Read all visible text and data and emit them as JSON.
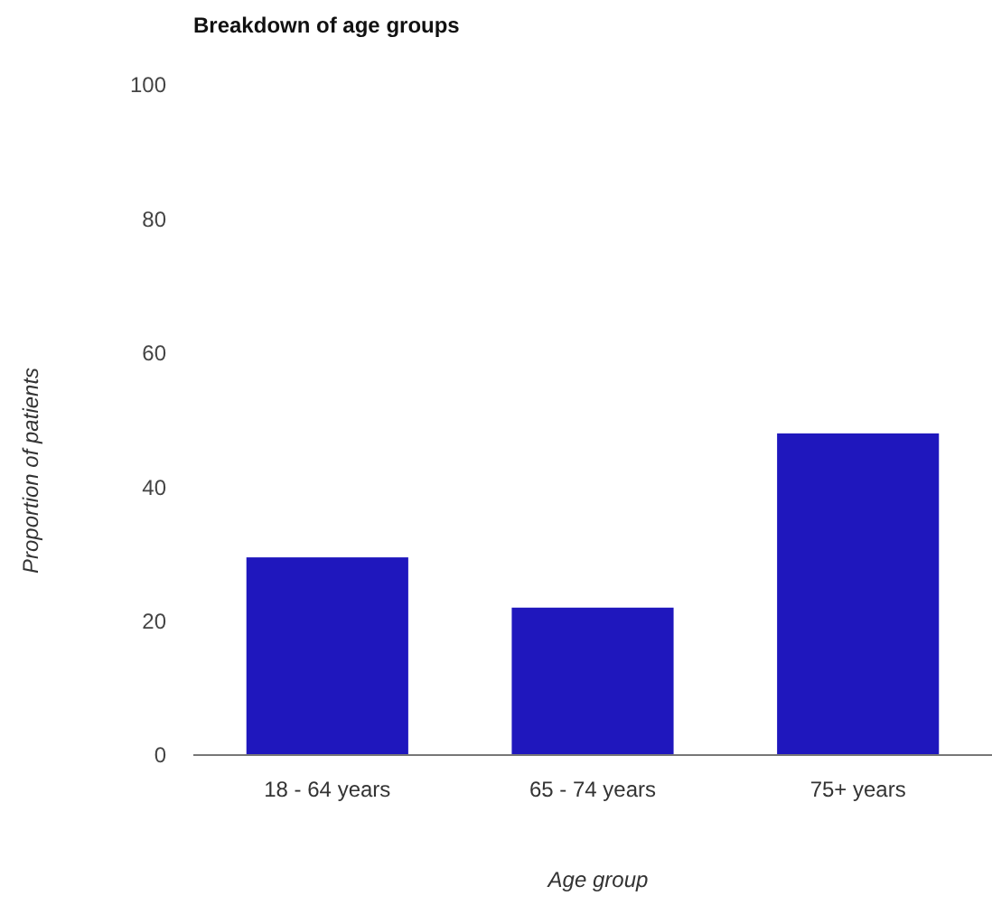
{
  "chart_data": {
    "type": "bar",
    "title": "Breakdown of age groups",
    "xlabel": "Age group",
    "ylabel": "Proportion of patients",
    "categories": [
      "18 - 64 years",
      "65 - 74 years",
      "75+ years"
    ],
    "values": [
      29.5,
      22,
      48
    ],
    "color": "#1f17bd",
    "ylim": [
      0,
      100
    ],
    "yticks": [
      0,
      20,
      40,
      60,
      80,
      100
    ],
    "grid": false
  }
}
